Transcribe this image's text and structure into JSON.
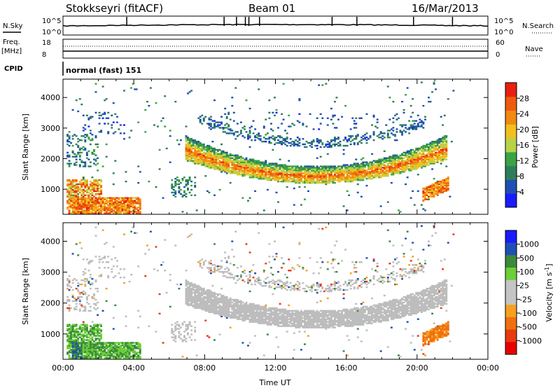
{
  "header": {
    "station": "Stokkseyri (fitACF)",
    "beam": "Beam 01",
    "date": "16/Mar/2013"
  },
  "top_panels": {
    "nsky_label": "N.Sky",
    "nsearch_label": "N.Search",
    "noise_ticks": [
      "10^5",
      "10^0"
    ],
    "freq_label": "Freq.",
    "freq_unit": "[MHz]",
    "freq_ticks": [
      "18",
      "8"
    ],
    "nave_label": "Nave",
    "nave_ticks": [
      "60",
      "0"
    ],
    "cpid_label": "CPID",
    "cpid_value": "normal (fast) 151"
  },
  "colors": {
    "power_scale": [
      "#1a1aff",
      "#1f4fb4",
      "#2e7d5a",
      "#3aa346",
      "#b8d24a",
      "#f0c020",
      "#f08a10",
      "#ee5a10",
      "#e82010"
    ],
    "velocity_scale": [
      "#1a1aff",
      "#1f4fb4",
      "#3b8a3b",
      "#6ccf3a",
      "#c4c4c4",
      "#c4c4c4",
      "#f5a020",
      "#f0700f",
      "#e83a10",
      "#e80000"
    ],
    "ground_scatter": "#bdbdbd"
  },
  "chart_data": [
    {
      "type": "heatmap",
      "name": "power",
      "ylabel": "Slant Range [km]",
      "xlabel": "",
      "ylim": [
        180,
        4600
      ],
      "yticks": [
        1000,
        2000,
        3000,
        4000
      ],
      "xlim_hours": [
        0,
        24
      ],
      "colorbar": {
        "label": "Power [dB]",
        "ticks": [
          4,
          8,
          12,
          16,
          20,
          24,
          28
        ],
        "range": [
          0,
          32
        ]
      },
      "features": [
        {
          "desc": "morning F-region echoes",
          "t": [
            0.3,
            4.3
          ],
          "range_km": [
            300,
            1300
          ],
          "dominant_dB": 24
        },
        {
          "desc": "main curved band",
          "t": [
            6.8,
            21.6
          ],
          "range_km": [
            1200,
            2600
          ],
          "dominant_dB": 14
        },
        {
          "desc": "upper band",
          "t": [
            7.5,
            20.5
          ],
          "range_km": [
            2100,
            3500
          ],
          "dominant_dB": 6
        },
        {
          "desc": "evening patch",
          "t": [
            20.3,
            21.8
          ],
          "range_km": [
            700,
            1200
          ],
          "dominant_dB": 24
        }
      ]
    },
    {
      "type": "heatmap",
      "name": "velocity",
      "ylabel": "Slant Range [km]",
      "xlabel": "Time UT",
      "ylim": [
        180,
        4600
      ],
      "yticks": [
        1000,
        2000,
        3000,
        4000
      ],
      "x_tick_labels": [
        "00:00",
        "04:00",
        "08:00",
        "12:00",
        "16:00",
        "20:00",
        "00:00"
      ],
      "colorbar": {
        "label": "Velocity [m s^-1]",
        "ticks": [
          "1000",
          "500",
          "100",
          "25",
          "-25",
          "-100",
          "-500",
          "-1000"
        ]
      },
      "features": [
        {
          "desc": "morning echoes",
          "t": [
            0.3,
            4.3
          ],
          "range_km": [
            300,
            900
          ],
          "dominant_ms": 150
        },
        {
          "desc": "ground scatter curved band",
          "t": [
            6.8,
            21.6
          ],
          "range_km": [
            1200,
            2600
          ],
          "dominant_ms": 0
        },
        {
          "desc": "evening patch",
          "t": [
            20.3,
            21.8
          ],
          "range_km": [
            700,
            1200
          ],
          "dominant_ms": -300
        }
      ]
    }
  ]
}
